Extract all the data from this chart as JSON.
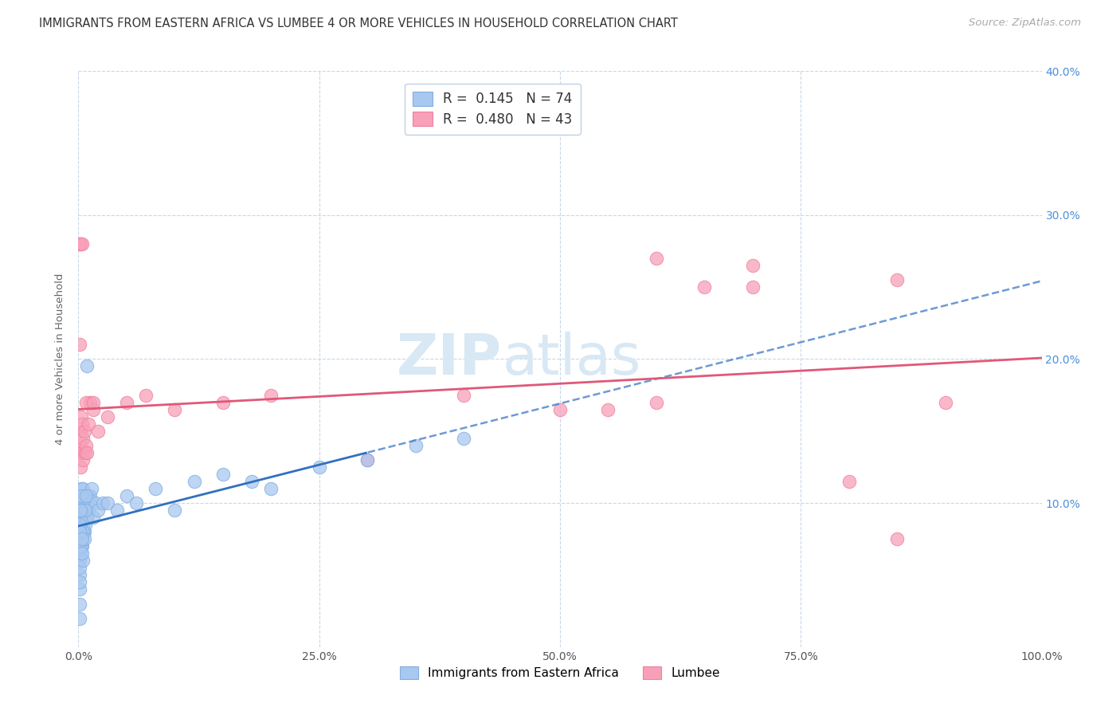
{
  "title": "IMMIGRANTS FROM EASTERN AFRICA VS LUMBEE 4 OR MORE VEHICLES IN HOUSEHOLD CORRELATION CHART",
  "source": "Source: ZipAtlas.com",
  "ylabel": "4 or more Vehicles in Household",
  "blue_label": "Immigrants from Eastern Africa",
  "pink_label": "Lumbee",
  "blue_R": 0.145,
  "blue_N": 74,
  "pink_R": 0.48,
  "pink_N": 43,
  "blue_color": "#a8c8f0",
  "pink_color": "#f8a0b8",
  "trend_blue_color": "#3070c0",
  "trend_pink_color": "#e05878",
  "blue_edge": "#80aee0",
  "pink_edge": "#f080a0",
  "xmin": 0,
  "xmax": 100,
  "ymin": 0,
  "ymax": 40,
  "yticks": [
    10,
    20,
    30,
    40
  ],
  "xticks": [
    0,
    25,
    50,
    75,
    100
  ],
  "grid_color": "#c8d8e8",
  "background_color": "#ffffff",
  "title_fontsize": 10.5,
  "axis_label_fontsize": 9.5,
  "tick_fontsize": 10,
  "legend_fontsize": 12,
  "source_fontsize": 9.5,
  "watermark_color": "#d8e8f4",
  "right_axis_color": "#4a90d9",
  "blue_x": [
    0.1,
    0.1,
    0.1,
    0.1,
    0.1,
    0.1,
    0.15,
    0.15,
    0.15,
    0.2,
    0.2,
    0.2,
    0.25,
    0.25,
    0.3,
    0.3,
    0.3,
    0.35,
    0.35,
    0.4,
    0.4,
    0.4,
    0.45,
    0.5,
    0.5,
    0.55,
    0.6,
    0.6,
    0.65,
    0.7,
    0.75,
    0.8,
    0.85,
    0.9,
    1.0,
    1.0,
    1.1,
    1.2,
    1.4,
    1.5,
    1.8,
    2.0,
    2.5,
    3.0,
    4.0,
    5.0,
    6.0,
    8.0,
    10.0,
    12.0,
    15.0,
    18.0,
    20.0,
    25.0,
    30.0,
    35.0,
    40.0,
    0.1,
    0.1,
    0.2,
    0.3,
    0.5,
    0.5,
    0.3,
    0.2,
    0.1,
    0.6,
    0.4,
    0.15,
    0.7,
    0.8,
    0.9,
    0.25,
    0.35
  ],
  "blue_y": [
    7.5,
    6.0,
    5.0,
    4.0,
    3.0,
    2.0,
    8.0,
    7.0,
    6.5,
    9.0,
    8.0,
    7.0,
    10.0,
    9.0,
    11.0,
    8.5,
    7.5,
    9.5,
    8.0,
    10.0,
    9.0,
    7.0,
    8.5,
    11.0,
    9.0,
    8.0,
    9.5,
    8.0,
    9.0,
    8.5,
    9.5,
    10.0,
    9.0,
    9.0,
    10.5,
    9.5,
    10.0,
    10.5,
    11.0,
    9.0,
    10.0,
    9.5,
    10.0,
    10.0,
    9.5,
    10.5,
    10.0,
    11.0,
    9.5,
    11.5,
    12.0,
    11.5,
    11.0,
    12.5,
    13.0,
    14.0,
    14.5,
    5.5,
    4.5,
    6.5,
    7.0,
    6.0,
    8.0,
    10.5,
    9.5,
    8.5,
    7.5,
    6.5,
    8.0,
    9.5,
    10.5,
    19.5,
    9.5,
    7.5
  ],
  "pink_x": [
    0.1,
    0.1,
    0.15,
    0.2,
    0.2,
    0.25,
    0.3,
    0.35,
    0.4,
    0.5,
    0.5,
    0.6,
    0.7,
    0.8,
    0.9,
    1.0,
    1.2,
    1.5,
    2.0,
    3.0,
    5.0,
    7.0,
    10.0,
    15.0,
    20.0,
    30.0,
    40.0,
    50.0,
    55.0,
    60.0,
    65.0,
    70.0,
    80.0,
    85.0,
    90.0,
    0.15,
    0.25,
    0.35,
    0.8,
    1.5,
    60.0,
    70.0,
    85.0
  ],
  "pink_y": [
    21.0,
    9.0,
    13.5,
    15.0,
    12.5,
    14.0,
    16.0,
    15.5,
    13.5,
    14.5,
    13.0,
    15.0,
    13.5,
    14.0,
    13.5,
    15.5,
    17.0,
    16.5,
    15.0,
    16.0,
    17.0,
    17.5,
    16.5,
    17.0,
    17.5,
    13.0,
    17.5,
    16.5,
    16.5,
    27.0,
    25.0,
    26.5,
    11.5,
    7.5,
    17.0,
    28.0,
    28.0,
    28.0,
    17.0,
    17.0,
    17.0,
    25.0,
    25.5
  ],
  "solid_end_x": 30,
  "dashed_start_x": 30
}
